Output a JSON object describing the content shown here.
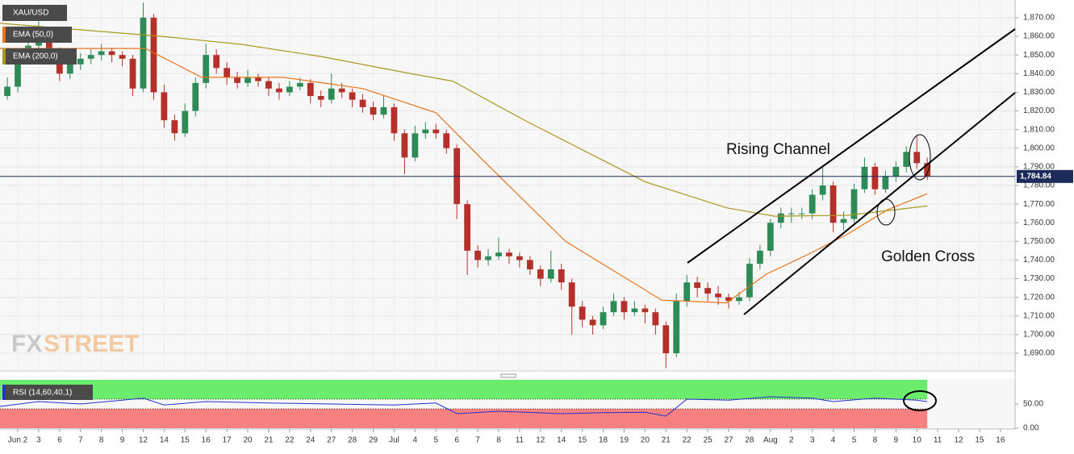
{
  "chart_data": {
    "type": "candlestick",
    "symbol": "XAU/USD",
    "up_color": "#2e8b57",
    "down_color": "#b5302a",
    "x": [
      -0.5,
      0,
      0.5,
      1,
      1.5,
      2,
      2.5,
      3,
      3.5,
      4,
      4.5,
      5,
      5.5,
      6,
      6.5,
      7,
      7.5,
      8,
      8.5,
      9,
      9.5,
      10,
      10.5,
      11,
      11.5,
      12,
      12.5,
      13,
      13.5,
      14,
      14.5,
      15,
      15.5,
      16,
      16.5,
      17,
      17.5,
      18,
      18.5,
      19,
      19.5,
      20,
      20.5,
      21,
      21.5,
      22,
      22.5,
      23,
      23.5,
      24,
      24.5,
      25,
      25.5,
      26,
      26.5,
      27,
      27.5,
      28,
      28.5,
      29,
      29.5,
      30,
      30.5,
      31,
      31.5,
      32,
      32.5,
      33,
      33.5,
      34,
      34.5,
      35,
      35.5,
      36,
      36.5,
      37,
      37.5,
      38,
      38.5,
      39,
      39.5,
      40,
      40.5,
      41,
      41.5,
      42,
      42.5,
      43,
      43.5
    ],
    "ohlc": [
      [
        1828,
        1838,
        1826,
        1833
      ],
      [
        1833,
        1851,
        1830,
        1848
      ],
      [
        1848,
        1858,
        1845,
        1855
      ],
      [
        1855,
        1868,
        1852,
        1860
      ],
      [
        1860,
        1863,
        1849,
        1852
      ],
      [
        1852,
        1854,
        1836,
        1840
      ],
      [
        1840,
        1848,
        1837,
        1845
      ],
      [
        1845,
        1851,
        1842,
        1848
      ],
      [
        1848,
        1853,
        1845,
        1850
      ],
      [
        1850,
        1856,
        1847,
        1852
      ],
      [
        1852,
        1854,
        1846,
        1850
      ],
      [
        1850,
        1852,
        1844,
        1848
      ],
      [
        1848,
        1850,
        1828,
        1832
      ],
      [
        1832,
        1878,
        1830,
        1870
      ],
      [
        1870,
        1872,
        1826,
        1830
      ],
      [
        1830,
        1834,
        1811,
        1815
      ],
      [
        1815,
        1818,
        1804,
        1808
      ],
      [
        1808,
        1824,
        1806,
        1820
      ],
      [
        1820,
        1838,
        1817,
        1835
      ],
      [
        1835,
        1856,
        1832,
        1850
      ],
      [
        1850,
        1853,
        1840,
        1843
      ],
      [
        1843,
        1846,
        1834,
        1838
      ],
      [
        1838,
        1841,
        1832,
        1835
      ],
      [
        1835,
        1842,
        1833,
        1838
      ],
      [
        1838,
        1840,
        1833,
        1836
      ],
      [
        1836,
        1838,
        1828,
        1832
      ],
      [
        1832,
        1835,
        1826,
        1830
      ],
      [
        1830,
        1836,
        1828,
        1833
      ],
      [
        1833,
        1838,
        1831,
        1835
      ],
      [
        1835,
        1837,
        1824,
        1828
      ],
      [
        1828,
        1831,
        1822,
        1826
      ],
      [
        1826,
        1840,
        1824,
        1832
      ],
      [
        1832,
        1835,
        1827,
        1830
      ],
      [
        1830,
        1832,
        1822,
        1826
      ],
      [
        1826,
        1829,
        1819,
        1822
      ],
      [
        1822,
        1825,
        1815,
        1818
      ],
      [
        1818,
        1828,
        1816,
        1822
      ],
      [
        1822,
        1824,
        1804,
        1808
      ],
      [
        1808,
        1810,
        1786,
        1795
      ],
      [
        1795,
        1812,
        1793,
        1808
      ],
      [
        1808,
        1814,
        1805,
        1810
      ],
      [
        1810,
        1813,
        1805,
        1808
      ],
      [
        1808,
        1810,
        1797,
        1800
      ],
      [
        1800,
        1802,
        1762,
        1770
      ],
      [
        1770,
        1772,
        1732,
        1745
      ],
      [
        1745,
        1748,
        1736,
        1740
      ],
      [
        1740,
        1746,
        1737,
        1742
      ],
      [
        1742,
        1752,
        1740,
        1744
      ],
      [
        1744,
        1746,
        1738,
        1742
      ],
      [
        1742,
        1744,
        1736,
        1740
      ],
      [
        1740,
        1742,
        1732,
        1735
      ],
      [
        1735,
        1737,
        1726,
        1730
      ],
      [
        1730,
        1745,
        1728,
        1735
      ],
      [
        1735,
        1738,
        1724,
        1728
      ],
      [
        1728,
        1730,
        1700,
        1715
      ],
      [
        1715,
        1718,
        1704,
        1708
      ],
      [
        1708,
        1710,
        1700,
        1705
      ],
      [
        1705,
        1715,
        1703,
        1712
      ],
      [
        1712,
        1722,
        1710,
        1718
      ],
      [
        1718,
        1720,
        1708,
        1712
      ],
      [
        1712,
        1718,
        1710,
        1714
      ],
      [
        1714,
        1716,
        1706,
        1712
      ],
      [
        1712,
        1714,
        1700,
        1705
      ],
      [
        1705,
        1707,
        1682,
        1690
      ],
      [
        1690,
        1722,
        1688,
        1718
      ],
      [
        1718,
        1732,
        1715,
        1728
      ],
      [
        1728,
        1731,
        1720,
        1725
      ],
      [
        1725,
        1728,
        1718,
        1722
      ],
      [
        1722,
        1726,
        1716,
        1720
      ],
      [
        1720,
        1722,
        1714,
        1718
      ],
      [
        1718,
        1723,
        1716,
        1720
      ],
      [
        1720,
        1741,
        1718,
        1738
      ],
      [
        1738,
        1748,
        1735,
        1745
      ],
      [
        1745,
        1762,
        1742,
        1760
      ],
      [
        1760,
        1768,
        1757,
        1765
      ],
      [
        1765,
        1768,
        1760,
        1765
      ],
      [
        1765,
        1768,
        1762,
        1765
      ],
      [
        1765,
        1778,
        1762,
        1775
      ],
      [
        1775,
        1790,
        1772,
        1780
      ],
      [
        1780,
        1782,
        1755,
        1760
      ],
      [
        1760,
        1766,
        1756,
        1762
      ],
      [
        1762,
        1781,
        1760,
        1778
      ],
      [
        1778,
        1795,
        1776,
        1790
      ],
      [
        1790,
        1792,
        1775,
        1778
      ],
      [
        1778,
        1788,
        1776,
        1785
      ],
      [
        1785,
        1793,
        1782,
        1790
      ],
      [
        1790,
        1801,
        1787,
        1798
      ],
      [
        1798,
        1807,
        1789,
        1792
      ],
      [
        1792,
        1795,
        1783,
        1785
      ]
    ],
    "xlim": [
      -0.85,
      47.7
    ],
    "xticks": [
      {
        "value": 0,
        "label": "Jun 2"
      },
      {
        "value": 1,
        "label": "3"
      },
      {
        "value": 2,
        "label": "6"
      },
      {
        "value": 3,
        "label": "7"
      },
      {
        "value": 4,
        "label": "8"
      },
      {
        "value": 5,
        "label": "9"
      },
      {
        "value": 6,
        "label": "12"
      },
      {
        "value": 7,
        "label": "14"
      },
      {
        "value": 8,
        "label": "15"
      },
      {
        "value": 9,
        "label": "16"
      },
      {
        "value": 10,
        "label": "17"
      },
      {
        "value": 11,
        "label": "20"
      },
      {
        "value": 12,
        "label": "21"
      },
      {
        "value": 13,
        "label": "22"
      },
      {
        "value": 14,
        "label": "24"
      },
      {
        "value": 15,
        "label": "27"
      },
      {
        "value": 16,
        "label": "28"
      },
      {
        "value": 17,
        "label": "29"
      },
      {
        "value": 18,
        "label": "Jul"
      },
      {
        "value": 19,
        "label": "4"
      },
      {
        "value": 20,
        "label": "5"
      },
      {
        "value": 21,
        "label": "6"
      },
      {
        "value": 22,
        "label": "7"
      },
      {
        "value": 23,
        "label": "8"
      },
      {
        "value": 24,
        "label": "11"
      },
      {
        "value": 25,
        "label": "12"
      },
      {
        "value": 26,
        "label": "14"
      },
      {
        "value": 27,
        "label": "15"
      },
      {
        "value": 28,
        "label": "18"
      },
      {
        "value": 29,
        "label": "19"
      },
      {
        "value": 30,
        "label": "20"
      },
      {
        "value": 31,
        "label": "21"
      },
      {
        "value": 32,
        "label": "22"
      },
      {
        "value": 33,
        "label": "25"
      },
      {
        "value": 34,
        "label": "27"
      },
      {
        "value": 35,
        "label": "28"
      },
      {
        "value": 36,
        "label": "Aug"
      },
      {
        "value": 37,
        "label": "2"
      },
      {
        "value": 38,
        "label": "3"
      },
      {
        "value": 39,
        "label": "4"
      },
      {
        "value": 40,
        "label": "5"
      },
      {
        "value": 41,
        "label": "8"
      },
      {
        "value": 42,
        "label": "9"
      },
      {
        "value": 43,
        "label": "10"
      },
      {
        "value": 44,
        "label": "11"
      },
      {
        "value": 45,
        "label": "12"
      },
      {
        "value": 46,
        "label": "15"
      },
      {
        "value": 47,
        "label": "16"
      }
    ],
    "ylim": [
      1680.5,
      1879.5
    ],
    "yticks": [
      {
        "value": 1690,
        "label": "1,690.00"
      },
      {
        "value": 1700,
        "label": "1,700.00"
      },
      {
        "value": 1710,
        "label": "1,710.00"
      },
      {
        "value": 1720,
        "label": "1,720.00"
      },
      {
        "value": 1730,
        "label": "1,730.00"
      },
      {
        "value": 1740,
        "label": "1,740.00"
      },
      {
        "value": 1750,
        "label": "1,750.00"
      },
      {
        "value": 1760,
        "label": "1,760.00"
      },
      {
        "value": 1770,
        "label": "1,770.00"
      },
      {
        "value": 1780,
        "label": "1,780.00"
      },
      {
        "value": 1790,
        "label": "1,790.00"
      },
      {
        "value": 1800,
        "label": "1,800.00"
      },
      {
        "value": 1810,
        "label": "1,810.00"
      },
      {
        "value": 1820,
        "label": "1,820.00"
      },
      {
        "value": 1830,
        "label": "1,830.00"
      },
      {
        "value": 1840,
        "label": "1,840.00"
      },
      {
        "value": 1850,
        "label": "1,850.00"
      },
      {
        "value": 1860,
        "label": "1,860.00"
      },
      {
        "value": 1870,
        "label": "1,870.00"
      }
    ],
    "grid": true,
    "last_price": {
      "value": 1784.84,
      "label": "1,784.84"
    },
    "last_price_color": "#1c2b5a",
    "overlays": [
      {
        "name": "EMA (50,0)",
        "color": "#e8731a",
        "x": [
          -0.85,
          6.1,
          8.8,
          12.7,
          16.5,
          20,
          22.3,
          26.2,
          30.8,
          33.9,
          35.8,
          37.8,
          39.7,
          41.6,
          43.5
        ],
        "values": [
          1853.5,
          1853.5,
          1838,
          1838,
          1832,
          1819,
          1793,
          1750,
          1718.5,
          1717,
          1732.4,
          1743,
          1754,
          1767,
          1775.6
        ]
      },
      {
        "name": "EMA (200,0)",
        "color": "#a8991e",
        "x": [
          -0.85,
          6.9,
          10.7,
          14.6,
          18.5,
          20.8,
          24.3,
          30,
          33.9,
          36.2,
          39.7,
          43.5
        ],
        "values": [
          1867,
          1860,
          1855.7,
          1849,
          1840.6,
          1836,
          1814.6,
          1782,
          1768,
          1763.5,
          1764,
          1769
        ]
      }
    ],
    "annotations": [
      "Rising Channel",
      "Golden Cross"
    ],
    "watermark": [
      "FX",
      "STREET"
    ],
    "rsi": {
      "name": "RSI (14,60,40,1)",
      "color": "#2233cc",
      "upper": 60,
      "lower": 40,
      "upper_color": "#6cec6c",
      "lower_color": "#f78080",
      "ylim": [
        0,
        100
      ],
      "yticks": [
        {
          "value": 50,
          "label": "50.00"
        },
        {
          "value": 0,
          "label": "0.00"
        }
      ],
      "x": [
        -0.85,
        1,
        3,
        5,
        6,
        7,
        9,
        12,
        15,
        18,
        20,
        21,
        23,
        26,
        28,
        30,
        31,
        32,
        34,
        36,
        38,
        39,
        41,
        43,
        43.5
      ],
      "values": [
        45,
        55,
        50,
        58,
        62,
        48,
        55,
        52,
        50,
        48,
        52,
        30,
        35,
        30,
        32,
        33,
        25,
        60,
        58,
        65,
        62,
        55,
        62,
        58,
        55
      ]
    }
  }
}
